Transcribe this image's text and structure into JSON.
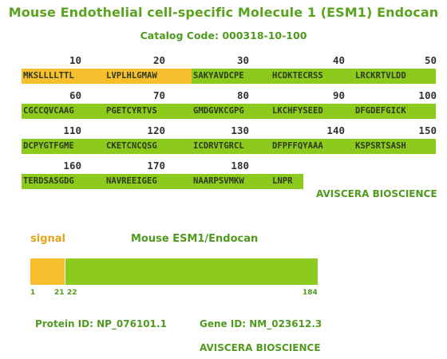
{
  "title": "Mouse Endothelial cell-specific Molecule 1 (ESM1) Endocan",
  "catalog": "Catalog Code: 000318-10-100",
  "colors": {
    "green": "#8ccb1e",
    "orange": "#f7bf2e",
    "text_green": "#4f9a1f"
  },
  "sequence_rows": [
    {
      "numbers": [
        "10",
        "20",
        "30",
        "40",
        "50"
      ],
      "chunks": [
        "MKSLLLLTTL",
        "LVPLHLGMAW",
        "SAKYAVDCPE",
        "HCDKTECRSS",
        "LRCKRTVLDD"
      ]
    },
    {
      "numbers": [
        "60",
        "70",
        "80",
        "90",
        "100"
      ],
      "chunks": [
        "CGCCQVCAAG",
        "PGETCYRTVS",
        "GMDGVKCGPG",
        "LKCHFYSEED",
        "DFGDEFGICK"
      ]
    },
    {
      "numbers": [
        "110",
        "120",
        "130",
        "140",
        "150"
      ],
      "chunks": [
        "DCPYGTFGME",
        "CKETCNCQSG",
        "ICDRVTGRCL",
        "DFPFFQYAAA",
        "KSPSRTSASH"
      ]
    },
    {
      "numbers": [
        "160",
        "170",
        "180"
      ],
      "chunks": [
        "TERDSASGDG",
        "NAVREEIGEG",
        "NAARPSVMKW",
        "LNPR"
      ]
    }
  ],
  "company_label": "AVISCERA BIOSCIENCE",
  "diagram": {
    "signal_label": "signal",
    "protein_label": "Mouse ESM1/Endocan",
    "signal_start": 1,
    "signal_end": 21,
    "mature_start": 22,
    "mature_end": 184,
    "ticks": [
      "1",
      "21",
      "22",
      "184"
    ]
  },
  "protein_id": "Protein ID: NP_076101.1",
  "gene_id": "Gene ID: NM_023612.3",
  "footer_company": "AVISCERA BIOSCIENCE"
}
